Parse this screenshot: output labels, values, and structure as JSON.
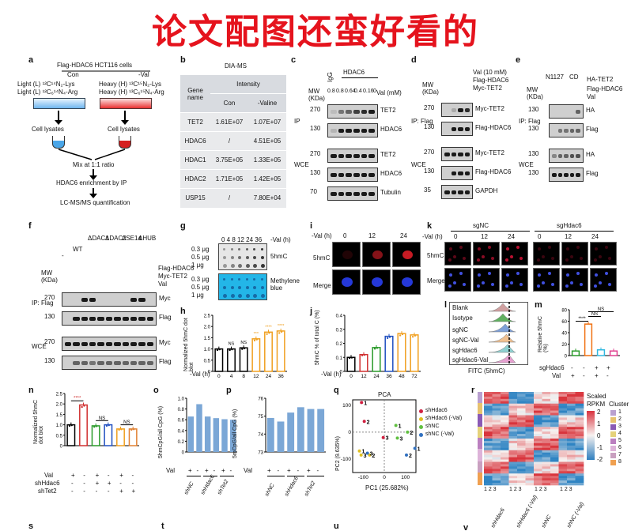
{
  "header_title": "论文配图还蛮好看的",
  "panels": {
    "a": {
      "label": "a",
      "top": "Flag-HDAC6 HCT116 cells",
      "con": "Con",
      "val": "-Val",
      "light1": "Light (L) ¹²C¹⁴N₂-Lys",
      "light2": "Light (L) ¹²C₆¹⁴N₄-Arg",
      "heavy1": "Heavy (H) ¹³C¹⁵N₂-Lys",
      "heavy2": "Heavy (H) ¹³C₆¹⁵N₄-Arg",
      "lysate1": "Cell lysates",
      "lysate2": "Cell lysates",
      "mix": "Mix at 1:1 ratio",
      "enrich": "HDAC6 enrichment by IP",
      "quant": "LC-MS/MS quantification"
    },
    "b": {
      "label": "b",
      "title": "DIA-MS",
      "col_gene": "Gene name",
      "col_int": "Intensity",
      "col_con": "Con",
      "col_val": "-Valine",
      "rows": [
        {
          "gene": "TET2",
          "con": "1.61E+07",
          "val": "1.07E+07"
        },
        {
          "gene": "HDAC6",
          "con": "/",
          "val": "4.51E+05"
        },
        {
          "gene": "HDAC1",
          "con": "3.75E+05",
          "val": "1.33E+05"
        },
        {
          "gene": "HDAC2",
          "con": "1.71E+05",
          "val": "1.42E+05"
        },
        {
          "gene": "USP15",
          "con": "/",
          "val": "7.80E+04"
        }
      ]
    },
    "c": {
      "label": "c",
      "mw": "MW (KDa)",
      "igg": "IgG",
      "hdac6": "HDAC6",
      "lanes": [
        "0.8",
        "0.8",
        "0.64",
        "0.4",
        "0.16",
        "0"
      ],
      "val_unit": "Val (mM)",
      "ip": "IP",
      "wce": "WCE",
      "rows": [
        "TET2",
        "HDAC6",
        "TET2",
        "HDAC6",
        "Tubulin"
      ],
      "markers": [
        "270",
        "130",
        "270",
        "130",
        "70"
      ]
    },
    "d": {
      "label": "d",
      "val": "Val (10 mM)",
      "flag": "Flag-HDAC6",
      "myc": "Myc-TET2",
      "mw": "MW (KDa)",
      "ip": "IP: Flag",
      "wce": "WCE",
      "rows": [
        "Myc-TET2",
        "Flag-HDAC6",
        "Myc-TET2",
        "Flag-HDAC6",
        "GAPDH"
      ],
      "markers": [
        "270",
        "130",
        "270",
        "130",
        "35"
      ]
    },
    "e": {
      "label": "e",
      "n1127": "N1127",
      "cd": "CD",
      "ha_tet2": "HA-TET2",
      "flag": "Flag-HDAC6",
      "val": "Val",
      "mw": "MW (KDa)",
      "ip": "IP: Flag",
      "wce": "WCE",
      "rows": [
        "HA",
        "Flag",
        "HA",
        "Flag"
      ],
      "markers": [
        "130",
        "130",
        "130",
        "130"
      ]
    },
    "f": {
      "label": "f",
      "constructs": [
        "-",
        "WT",
        "ΔDAC1",
        "ΔDAC2",
        "ΔSE14",
        "ΔHUB"
      ],
      "flag": "Flag-HDAC6",
      "myc_row": "Myc-TET2",
      "val_row": "Val",
      "mw": "MW (KDa)",
      "ip": "IP: Flag",
      "wce": "WCE",
      "rows": [
        "Myc",
        "Flag",
        "Myc",
        "Flag"
      ],
      "markers": [
        "270",
        "130",
        "270",
        "130"
      ]
    },
    "g": {
      "label": "g",
      "hours": "0 4 8 12 24 36",
      "val_h": "-Val (h)",
      "doses": [
        "0.3 μg",
        "0.5 μg",
        "1 μg"
      ],
      "mark1": "5hmC",
      "mark2": "Methylene blue"
    },
    "h": {
      "label": "h",
      "ylabel": "Normalized 5hmC dot blot",
      "xlabel": "-Val (h)",
      "ns1": "NS",
      "ns2": "NS"
    },
    "i": {
      "label": "i",
      "val_h": "-Val (h)",
      "times": [
        "0",
        "12",
        "24"
      ],
      "row1": "5hmC",
      "row2": "Merge"
    },
    "j": {
      "label": "j",
      "ylabel": "5hmC % of total C (%)",
      "xlabel": "-Val (h)",
      "ns": "NS"
    },
    "k": {
      "label": "k",
      "sgnc": "sgNC",
      "sghdac6": "sgHdac6",
      "val_h": "-Val (h)",
      "times": [
        "0",
        "12",
        "24",
        "0",
        "12",
        "24"
      ],
      "row1": "5hmC",
      "row2": "Merge"
    },
    "l": {
      "label": "l",
      "rows": [
        "Blank",
        "Isotype",
        "sgNC",
        "sgNC-Val",
        "sgHdac6",
        "sgHdac6-Val"
      ],
      "xlabel": "FITC (5hmC)"
    },
    "m": {
      "label": "m",
      "ylabel": "Relative 5hmC (%)",
      "ns1": "NS",
      "ns2": "NS",
      "sig": "****",
      "row1": "sgHdac6",
      "row2": "Val",
      "r1v": [
        "-",
        "-",
        "+",
        "+"
      ],
      "r2v": [
        "+",
        "-",
        "+",
        "-"
      ]
    },
    "n": {
      "label": "n",
      "ylabel": "Normalized 5hmC dot blot",
      "sig": "****",
      "ns1": "NS",
      "ns2": "NS",
      "row_val": "Val",
      "row_sh1": "shHdac6",
      "row_sh2": "shTet2",
      "val_v": [
        "+",
        "-",
        "+",
        "-",
        "+",
        "-"
      ],
      "sh1_v": [
        "-",
        "-",
        "+",
        "+",
        "-",
        "-"
      ],
      "sh2_v": [
        "-",
        "-",
        "-",
        "-",
        "+",
        "+"
      ]
    },
    "o": {
      "label": "o",
      "ylabel": "5hmCpG/all CpG (%)",
      "val": "Val",
      "val_v": [
        "+",
        "-",
        "+",
        "-",
        "+",
        "-"
      ],
      "groups": [
        "shNC",
        "shHdac6",
        "shTet2"
      ]
    },
    "p": {
      "label": "p",
      "ylabel": "5mCpG/all CpG (%)",
      "val": "Val",
      "val_v": [
        "+",
        "-",
        "+",
        "-",
        "+",
        "-"
      ],
      "groups": [
        "shNC",
        "shHdac6",
        "shTet2"
      ]
    },
    "q": {
      "label": "q",
      "title": "PCA",
      "xlabel": "PC1 (25.682%)",
      "ylabel": "PC2 (9.635%)",
      "legend": [
        "shHdac6",
        "shHdac6 (-Val)",
        "shNC",
        "shNC (-Val)"
      ]
    },
    "r": {
      "label": "r",
      "legend_title1": "Scaled",
      "legend_title2": "RPKM",
      "legend_cluster": "Cluster",
      "scale": [
        "2",
        "1",
        "0",
        "-1",
        "-2"
      ],
      "clusters": [
        "1",
        "2",
        "3",
        "4",
        "5",
        "6",
        "7",
        "8"
      ],
      "col_labels": [
        "1 2 3",
        "1 2 3",
        "1 2 3",
        "1 2 3"
      ],
      "groups": [
        "shHdac6",
        "shHdac6 (-Val)",
        "shNC",
        "shNC (-Val)"
      ]
    },
    "s": {
      "label": "s"
    },
    "t": {
      "label": "t"
    },
    "u": {
      "label": "u"
    },
    "v": {
      "label": "v"
    }
  },
  "chart_data": [
    {
      "id": "h",
      "type": "bar",
      "categories": [
        "0",
        "4",
        "8",
        "12",
        "24",
        "36"
      ],
      "values": [
        1.0,
        1.0,
        1.05,
        1.45,
        1.75,
        1.8
      ],
      "ylim": [
        0,
        2.5
      ],
      "yticks": [
        "0",
        "0.5",
        "1.0",
        "1.5",
        "2.0",
        "2.5"
      ],
      "annotations": [
        "NS",
        "NS",
        "***",
        "****",
        "****"
      ],
      "colors": [
        "#000000",
        "#000000",
        "#000000",
        "#f0a020",
        "#f0a020",
        "#f0a020"
      ]
    },
    {
      "id": "j",
      "type": "bar",
      "categories": [
        "0",
        "12",
        "24",
        "36",
        "48",
        "72"
      ],
      "values": [
        0.1,
        0.12,
        0.17,
        0.25,
        0.27,
        0.26
      ],
      "ylim": [
        0,
        0.4
      ],
      "yticks": [
        "0",
        "0.1",
        "0.2",
        "0.3",
        "0.4"
      ],
      "colors": [
        "#000000",
        "#d03030",
        "#2a9a2a",
        "#2050c0",
        "#f0a020",
        "#f0a020"
      ]
    },
    {
      "id": "m",
      "type": "bar",
      "categories": [
        "1",
        "2",
        "3",
        "4"
      ],
      "values": [
        8,
        55,
        10,
        8
      ],
      "ylim": [
        0,
        80
      ],
      "yticks": [
        "0",
        "20",
        "40",
        "60",
        "80"
      ],
      "colors": [
        "#2a9a2a",
        "#f07010",
        "#30b8e0",
        "#e04090"
      ]
    },
    {
      "id": "n",
      "type": "bar",
      "categories": [
        "1",
        "2",
        "3",
        "4",
        "5",
        "6"
      ],
      "values": [
        1.0,
        1.95,
        0.95,
        1.0,
        0.8,
        0.8
      ],
      "ylim": [
        0,
        2.5
      ],
      "yticks": [
        "0",
        "0.5",
        "1.0",
        "1.5",
        "2.0",
        "2.5"
      ],
      "colors": [
        "#000000",
        "#d03030",
        "#2a9a2a",
        "#2050c0",
        "#f0a020",
        "#e08030"
      ]
    },
    {
      "id": "o",
      "type": "bar",
      "categories": [
        "1",
        "2",
        "3",
        "4",
        "5",
        "6"
      ],
      "values": [
        0.66,
        0.89,
        0.66,
        0.63,
        0.61,
        0.6
      ],
      "ylim": [
        0,
        1.0
      ],
      "yticks": [
        "0",
        "0.2",
        "0.4",
        "0.6",
        "0.8",
        "1.0"
      ],
      "colors": [
        "#7ba7d6",
        "#7ba7d6",
        "#7ba7d6",
        "#7ba7d6",
        "#7ba7d6",
        "#7ba7d6"
      ]
    },
    {
      "id": "p",
      "type": "bar",
      "categories": [
        "1",
        "2",
        "3",
        "4",
        "5",
        "6"
      ],
      "values": [
        74.9,
        74.7,
        75.2,
        75.5,
        75.4,
        75.4
      ],
      "ylim": [
        73,
        76
      ],
      "yticks": [
        "73",
        "74",
        "75",
        "76"
      ],
      "colors": [
        "#7ba7d6",
        "#7ba7d6",
        "#7ba7d6",
        "#7ba7d6",
        "#7ba7d6",
        "#7ba7d6"
      ]
    },
    {
      "id": "q",
      "type": "scatter",
      "xlim": [
        -150,
        150
      ],
      "ylim": [
        -150,
        120
      ],
      "xticks": [
        "-100",
        "0",
        "100"
      ],
      "yticks": [
        "-100",
        "0",
        "100"
      ],
      "series": [
        {
          "name": "shHdac6",
          "color": "#d02040",
          "points": [
            [
              -108,
              110,
              "1"
            ],
            [
              -95,
              40,
              "2"
            ],
            [
              -5,
              -20,
              "3"
            ]
          ]
        },
        {
          "name": "shHdac6 (-Val)",
          "color": "#e0c020",
          "points": [
            [
              -118,
              -70,
              "1"
            ],
            [
              -110,
              -85,
              "3"
            ],
            [
              -70,
              -85,
              "2"
            ]
          ]
        },
        {
          "name": "shNC",
          "color": "#60c040",
          "points": [
            [
              55,
              25,
              "1"
            ],
            [
              62,
              -22,
              "3"
            ],
            [
              110,
              0,
              "2"
            ]
          ]
        },
        {
          "name": "shNC (-Val)",
          "color": "#3070c0",
          "points": [
            [
              -80,
              -78,
              "3"
            ],
            [
              105,
              -85,
              "2"
            ],
            [
              145,
              -60,
              "1"
            ]
          ]
        }
      ]
    }
  ]
}
